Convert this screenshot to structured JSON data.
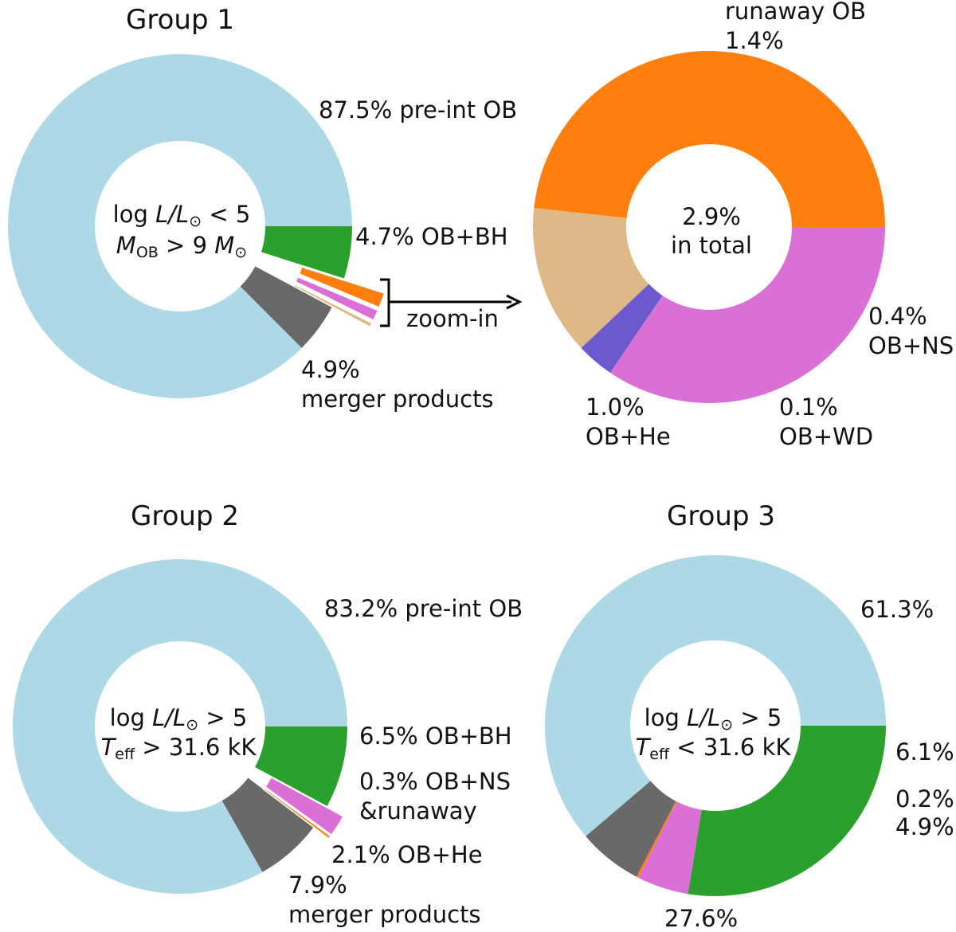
{
  "chart_data": [
    {
      "type": "pie",
      "variant": "donut",
      "title": "Group 1",
      "center_text": {
        "line1": {
          "prefix": "log ",
          "var": "L/L",
          "sub": "⊙",
          "rel": " < 5"
        },
        "line2": {
          "var": "M",
          "sub": "OB",
          "rel": " > 9 ",
          "var2": "M",
          "sub2": "⊙"
        }
      },
      "slices": [
        {
          "name": "pre-int OB",
          "value": 87.5,
          "color": "#add8e6",
          "label": [
            "87.5% pre-int OB"
          ]
        },
        {
          "name": "OB+BH",
          "value": 4.7,
          "color": "#696969",
          "label": [
            "4.7% OB+BH"
          ]
        },
        {
          "name": "OB+NS",
          "value": 0.4,
          "color": "#deb887",
          "exploded": true
        },
        {
          "name": "OB+WD",
          "value": 0.1,
          "color": "#6a5acd",
          "exploded": true
        },
        {
          "name": "OB+He",
          "value": 1.0,
          "color": "#da70d6",
          "exploded": true
        },
        {
          "name": "runaway OB",
          "value": 1.4,
          "color": "#ff7f0e",
          "exploded": true
        },
        {
          "name": "merger products",
          "value": 4.9,
          "color": "#2ca02c",
          "label": [
            "4.9%",
            "merger products"
          ]
        }
      ],
      "annotation": "zoom-in"
    },
    {
      "type": "pie",
      "variant": "donut",
      "title": "",
      "center_text": {
        "line1": "2.9%",
        "line2": "in total"
      },
      "slices": [
        {
          "name": "runaway OB",
          "value": 1.4,
          "color": "#ff7f0e",
          "label": [
            "runaway OB",
            "1.4%"
          ]
        },
        {
          "name": "OB+NS",
          "value": 0.4,
          "color": "#deb887",
          "label": [
            "0.4%",
            "OB+NS"
          ]
        },
        {
          "name": "OB+WD",
          "value": 0.1,
          "color": "#6a5acd",
          "label": [
            "0.1%",
            "OB+WD"
          ]
        },
        {
          "name": "OB+He",
          "value": 1.0,
          "color": "#da70d6",
          "label": [
            "1.0%",
            "OB+He"
          ]
        }
      ]
    },
    {
      "type": "pie",
      "variant": "donut",
      "title": "Group 2",
      "center_text": {
        "line1": {
          "prefix": "log ",
          "var": "L/L",
          "sub": "⊙",
          "rel": " > 5"
        },
        "line2": {
          "var": "T",
          "sub": "eff",
          "rel": " > 31.6 kK"
        }
      },
      "slices": [
        {
          "name": "pre-int OB",
          "value": 83.2,
          "color": "#add8e6",
          "label": [
            "83.2% pre-int OB"
          ]
        },
        {
          "name": "OB+BH",
          "value": 6.5,
          "color": "#696969",
          "label": [
            "6.5% OB+BH"
          ]
        },
        {
          "name": "OB+NS & runaway",
          "value": 0.3,
          "color": "#ff7f0e",
          "exploded": true,
          "label": [
            "0.3% OB+NS",
            "&runaway"
          ]
        },
        {
          "name": "OB+He",
          "value": 2.1,
          "color": "#da70d6",
          "exploded": true,
          "label": [
            "2.1% OB+He"
          ]
        },
        {
          "name": "merger products",
          "value": 7.9,
          "color": "#2ca02c",
          "label": [
            "7.9%",
            "merger products"
          ]
        }
      ]
    },
    {
      "type": "pie",
      "variant": "donut",
      "title": "Group 3",
      "center_text": {
        "line1": {
          "prefix": "log ",
          "var": "L/L",
          "sub": "⊙",
          "rel": " > 5"
        },
        "line2": {
          "var": "T",
          "sub": "eff",
          "rel": " < 31.6 kK"
        }
      },
      "slices": [
        {
          "name": "pre-int OB",
          "value": 61.3,
          "color": "#add8e6",
          "label": [
            "61.3%"
          ]
        },
        {
          "name": "OB+BH",
          "value": 6.1,
          "color": "#696969",
          "label": [
            "6.1%"
          ]
        },
        {
          "name": "OB+NS & runaway",
          "value": 0.2,
          "color": "#ff7f0e",
          "label": [
            "0.2%"
          ]
        },
        {
          "name": "OB+He",
          "value": 4.9,
          "color": "#da70d6",
          "label": [
            "4.9%"
          ]
        },
        {
          "name": "merger products",
          "value": 27.6,
          "color": "#2ca02c",
          "label": [
            "27.6%"
          ]
        }
      ]
    }
  ]
}
